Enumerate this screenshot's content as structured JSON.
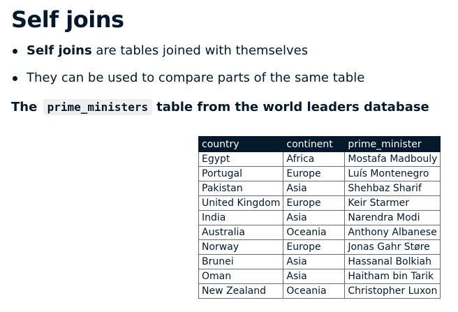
{
  "slide": {
    "title": "Self joins",
    "bullets": [
      {
        "bold": "Self joins",
        "rest": " are tables joined with themselves"
      },
      {
        "bold": "",
        "rest": "They can be used to compare parts of the same table"
      }
    ],
    "caption": {
      "prefix": "The",
      "code": "prime_ministers",
      "suffix": "table from the world leaders database"
    }
  },
  "table": {
    "headers": [
      "country",
      "continent",
      "prime_minister"
    ],
    "rows": [
      [
        "Egypt",
        "Africa",
        "Mostafa Madbouly"
      ],
      [
        "Portugal",
        "Europe",
        "Luís Montenegro"
      ],
      [
        "Pakistan",
        "Asia",
        "Shehbaz Sharif"
      ],
      [
        "United Kingdom",
        "Europe",
        "Keir Starmer"
      ],
      [
        "India",
        "Asia",
        "Narendra Modi"
      ],
      [
        "Australia",
        "Oceania",
        "Anthony Albanese"
      ],
      [
        "Norway",
        "Europe",
        "Jonas Gahr Støre"
      ],
      [
        "Brunei",
        "Asia",
        "Hassanal Bolkiah"
      ],
      [
        "Oman",
        "Asia",
        "Haitham bin Tarik"
      ],
      [
        "New Zealand",
        "Oceania",
        "Christopher Luxon"
      ]
    ]
  }
}
